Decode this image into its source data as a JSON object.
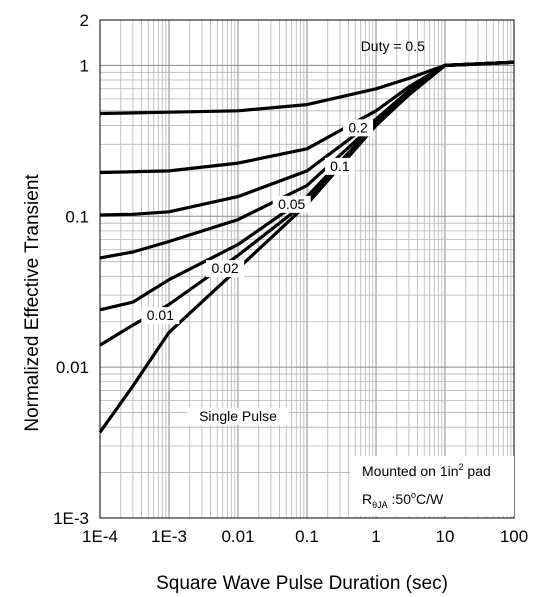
{
  "chart_data": {
    "type": "line",
    "title": "",
    "xlabel": "Square Wave Pulse Duration (sec)",
    "ylabel": "Normalized Effective Transient",
    "xscale": "log",
    "yscale": "log",
    "xlim": [
      0.0001,
      100
    ],
    "ylim": [
      0.001,
      2
    ],
    "grid": true,
    "x_ticks": [
      {
        "value": 0.0001,
        "label": "1E-4"
      },
      {
        "value": 0.001,
        "label": "1E-3"
      },
      {
        "value": 0.01,
        "label": "0.01"
      },
      {
        "value": 0.1,
        "label": "0.1"
      },
      {
        "value": 1,
        "label": "1"
      },
      {
        "value": 10,
        "label": "10"
      },
      {
        "value": 100,
        "label": "100"
      }
    ],
    "y_ticks": [
      {
        "value": 0.001,
        "label": "1E-3"
      },
      {
        "value": 0.01,
        "label": "0.01"
      },
      {
        "value": 0.1,
        "label": "0.1"
      },
      {
        "value": 1,
        "label": "1"
      },
      {
        "value": 2,
        "label": "2"
      }
    ],
    "series": [
      {
        "name": "Duty = 0.5",
        "x": [
          0.0001,
          0.001,
          0.01,
          0.1,
          1,
          3,
          10,
          30,
          100
        ],
        "y": [
          0.48,
          0.49,
          0.5,
          0.55,
          0.7,
          0.82,
          1.0,
          1.02,
          1.05
        ]
      },
      {
        "name": "0.2",
        "x": [
          0.0001,
          0.001,
          0.01,
          0.1,
          1,
          3,
          10,
          30,
          100
        ],
        "y": [
          0.195,
          0.2,
          0.225,
          0.28,
          0.5,
          0.72,
          1.0,
          1.02,
          1.05
        ]
      },
      {
        "name": "0.1",
        "x": [
          0.0001,
          0.0003,
          0.001,
          0.01,
          0.1,
          1,
          3,
          10,
          100
        ],
        "y": [
          0.102,
          0.103,
          0.107,
          0.135,
          0.2,
          0.44,
          0.68,
          1.0,
          1.05
        ]
      },
      {
        "name": "0.05",
        "x": [
          0.0001,
          0.0003,
          0.001,
          0.01,
          0.1,
          1,
          3,
          10,
          100
        ],
        "y": [
          0.053,
          0.058,
          0.068,
          0.095,
          0.16,
          0.42,
          0.66,
          1.0,
          1.05
        ]
      },
      {
        "name": "0.02",
        "x": [
          0.0001,
          0.0003,
          0.001,
          0.01,
          0.1,
          1,
          3,
          10,
          100
        ],
        "y": [
          0.024,
          0.027,
          0.038,
          0.065,
          0.135,
          0.41,
          0.65,
          1.0,
          1.05
        ]
      },
      {
        "name": "0.01",
        "x": [
          0.0001,
          0.0003,
          0.001,
          0.01,
          0.1,
          1,
          3,
          10,
          100
        ],
        "y": [
          0.014,
          0.019,
          0.026,
          0.055,
          0.125,
          0.4,
          0.64,
          1.0,
          1.05
        ]
      },
      {
        "name": "Single Pulse",
        "x": [
          0.0001,
          0.0003,
          0.001,
          0.01,
          0.1,
          1,
          3,
          10,
          100
        ],
        "y": [
          0.0037,
          0.0075,
          0.017,
          0.045,
          0.12,
          0.4,
          0.64,
          1.0,
          1.05
        ]
      }
    ],
    "annotations": {
      "note_line1_pre": "Mounted on 1in",
      "note_line1_sup": "2",
      "note_line1_post": " pad",
      "note_line2_main": "R",
      "note_line2_sub": "θJA",
      "note_line2_pre_deg": " :50",
      "note_line2_deg": "o",
      "note_line2_post": "C/W"
    }
  }
}
